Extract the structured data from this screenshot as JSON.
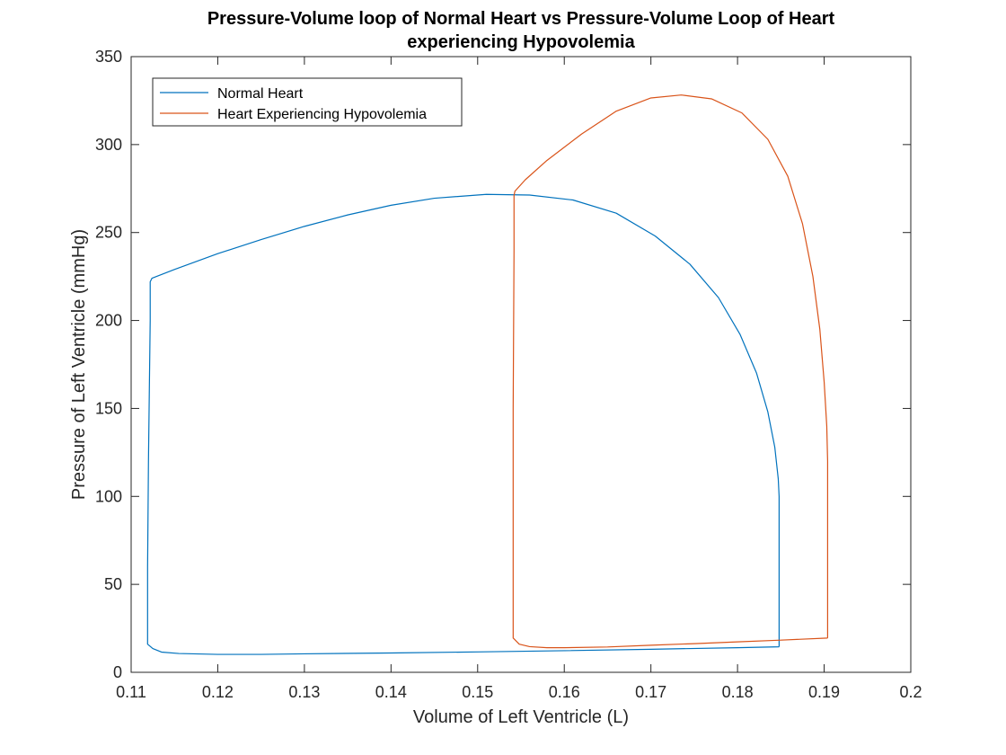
{
  "chart_data": {
    "type": "line",
    "title": [
      "Pressure-Volume loop of Normal Heart vs Pressure-Volume Loop of Heart",
      "experiencing Hypovolemia"
    ],
    "xlabel": "Volume of Left Ventricle (L)",
    "ylabel": "Pressure of Left Ventricle (mmHg)",
    "xlim": [
      0.11,
      0.2
    ],
    "ylim": [
      0,
      350
    ],
    "xticks": [
      0.11,
      0.12,
      0.13,
      0.14,
      0.15,
      0.16,
      0.17,
      0.18,
      0.19,
      0.2
    ],
    "xtick_labels": [
      "0.11",
      "0.12",
      "0.13",
      "0.14",
      "0.15",
      "0.16",
      "0.17",
      "0.18",
      "0.19",
      "0.2"
    ],
    "yticks": [
      0,
      50,
      100,
      150,
      200,
      250,
      300,
      350
    ],
    "ytick_labels": [
      "0",
      "50",
      "100",
      "150",
      "200",
      "250",
      "300",
      "350"
    ],
    "grid": false,
    "legend_position": "top-left",
    "series": [
      {
        "name": "Normal Heart",
        "color": "#0072BD",
        "points": [
          [
            0.1848,
            14.5
          ],
          [
            0.1848,
            100
          ],
          [
            0.1847,
            110
          ],
          [
            0.1843,
            128
          ],
          [
            0.1835,
            148
          ],
          [
            0.1822,
            170
          ],
          [
            0.1803,
            192
          ],
          [
            0.1778,
            213
          ],
          [
            0.1745,
            232
          ],
          [
            0.1705,
            248
          ],
          [
            0.166,
            261
          ],
          [
            0.161,
            268.5
          ],
          [
            0.156,
            271.3
          ],
          [
            0.151,
            271.7
          ],
          [
            0.145,
            269.5
          ],
          [
            0.14,
            265.5
          ],
          [
            0.135,
            260
          ],
          [
            0.13,
            253.5
          ],
          [
            0.125,
            246
          ],
          [
            0.12,
            238
          ],
          [
            0.115,
            229
          ],
          [
            0.1124,
            224
          ],
          [
            0.1122,
            222
          ],
          [
            0.1122,
            200
          ],
          [
            0.1121,
            160
          ],
          [
            0.112,
            120
          ],
          [
            0.1119,
            60
          ],
          [
            0.1119,
            16
          ],
          [
            0.1125,
            13.5
          ],
          [
            0.1135,
            11.5
          ],
          [
            0.1155,
            10.7
          ],
          [
            0.12,
            10.2
          ],
          [
            0.125,
            10.2
          ],
          [
            0.13,
            10.5
          ],
          [
            0.14,
            11.0
          ],
          [
            0.15,
            11.6
          ],
          [
            0.16,
            12.3
          ],
          [
            0.17,
            13.1
          ],
          [
            0.18,
            14.0
          ],
          [
            0.1848,
            14.5
          ]
        ]
      },
      {
        "name": "Heart Experiencing Hypovolemia",
        "color": "#D95319",
        "points": [
          [
            0.1904,
            19.5
          ],
          [
            0.1904,
            120
          ],
          [
            0.1903,
            140
          ],
          [
            0.19,
            165
          ],
          [
            0.1895,
            195
          ],
          [
            0.1887,
            225
          ],
          [
            0.1875,
            255
          ],
          [
            0.1858,
            282
          ],
          [
            0.1835,
            303
          ],
          [
            0.1805,
            318
          ],
          [
            0.177,
            326
          ],
          [
            0.1735,
            328.2
          ],
          [
            0.17,
            326.5
          ],
          [
            0.166,
            319
          ],
          [
            0.162,
            306
          ],
          [
            0.158,
            291
          ],
          [
            0.1555,
            280
          ],
          [
            0.1543,
            273.5
          ],
          [
            0.1542,
            271
          ],
          [
            0.1542,
            240
          ],
          [
            0.1541,
            150
          ],
          [
            0.1541,
            60
          ],
          [
            0.1541,
            19.5
          ],
          [
            0.1548,
            16.0
          ],
          [
            0.156,
            14.6
          ],
          [
            0.158,
            14.0
          ],
          [
            0.16,
            14.0
          ],
          [
            0.165,
            14.4
          ],
          [
            0.17,
            15.4
          ],
          [
            0.175,
            16.3
          ],
          [
            0.18,
            17.3
          ],
          [
            0.185,
            18.3
          ],
          [
            0.1904,
            19.5
          ]
        ]
      }
    ]
  }
}
